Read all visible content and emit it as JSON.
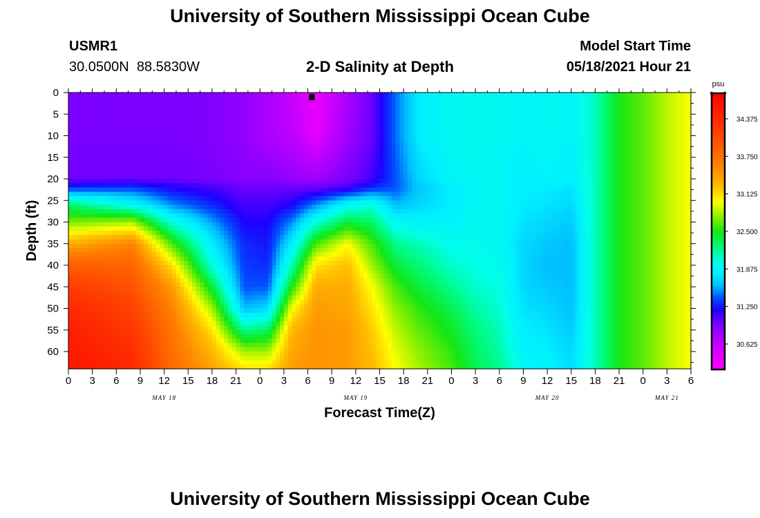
{
  "header": {
    "title": "University of Southern Mississippi Ocean Cube",
    "station_id": "USMR1",
    "coords": "30.0500N  88.5830W",
    "plot_title": "2-D Salinity at Depth",
    "model_start_label": "Model Start Time",
    "model_start_value": "05/18/2021 Hour 21"
  },
  "footer": {
    "title": "University of Southern Mississippi Ocean Cube"
  },
  "chart_data": {
    "type": "heatmap",
    "title": "2-D Salinity at Depth",
    "xlabel": "Forecast Time(Z)",
    "ylabel": "Depth (ft)",
    "x_unit": "hours since 2021-05-18 00Z",
    "xlim": [
      0,
      78
    ],
    "ylim": [
      0,
      64
    ],
    "y_inverted": true,
    "x_ticks": [
      0,
      3,
      6,
      9,
      12,
      15,
      18,
      21,
      24,
      27,
      30,
      33,
      36,
      39,
      42,
      45,
      48,
      51,
      54,
      57,
      60,
      63,
      66,
      69,
      72,
      75,
      78
    ],
    "x_tick_labels": [
      "0",
      "3",
      "6",
      "9",
      "12",
      "15",
      "18",
      "21",
      "0",
      "3",
      "6",
      "9",
      "12",
      "15",
      "18",
      "21",
      "0",
      "3",
      "6",
      "9",
      "12",
      "15",
      "18",
      "21",
      "0",
      "3",
      "6"
    ],
    "y_ticks": [
      0,
      5,
      10,
      15,
      20,
      25,
      30,
      35,
      40,
      45,
      50,
      55,
      60
    ],
    "y_tick_labels": [
      "0",
      "5",
      "10",
      "15",
      "20",
      "25",
      "30",
      "35",
      "40",
      "45",
      "50",
      "55",
      "60"
    ],
    "date_labels": [
      {
        "x": 12,
        "label": "MAY 18"
      },
      {
        "x": 36,
        "label": "MAY 19"
      },
      {
        "x": 60,
        "label": "MAY 20"
      },
      {
        "x": 75,
        "label": "MAY 21"
      }
    ],
    "marker": {
      "x": 30.5,
      "depth": 0.5
    },
    "colorbar": {
      "unit": "psu",
      "min": 30.2,
      "max": 34.8,
      "tick_values": [
        34.375,
        33.75,
        33.125,
        32.5,
        31.875,
        31.25,
        30.625
      ],
      "tick_labels": [
        "34.375",
        "33.750",
        "33.125",
        "32.500",
        "31.875",
        "31.250",
        "30.625"
      ]
    },
    "salinity_profiles": {
      "depths": [
        0,
        10,
        20,
        22,
        26,
        30,
        35,
        40,
        45,
        50,
        55,
        60,
        64
      ],
      "columns": [
        {
          "t": 0,
          "values": [
            30.95,
            30.95,
            31.0,
            31.3,
            32.3,
            32.7,
            33.35,
            33.9,
            34.2,
            34.4,
            34.5,
            34.55,
            34.6
          ]
        },
        {
          "t": 8,
          "values": [
            30.95,
            30.95,
            31.0,
            31.35,
            31.9,
            32.8,
            33.6,
            33.85,
            34.0,
            34.15,
            34.25,
            34.35,
            34.4
          ]
        },
        {
          "t": 13,
          "values": [
            30.95,
            30.95,
            31.0,
            31.2,
            31.5,
            32.0,
            32.6,
            33.1,
            33.45,
            33.6,
            33.7,
            33.75,
            33.8
          ]
        },
        {
          "t": 18,
          "values": [
            30.92,
            30.92,
            30.95,
            31.1,
            31.3,
            31.55,
            31.8,
            32.0,
            32.4,
            32.8,
            33.1,
            33.3,
            33.4
          ]
        },
        {
          "t": 22,
          "values": [
            30.85,
            30.85,
            30.9,
            31.0,
            31.1,
            31.2,
            31.3,
            31.35,
            31.4,
            31.6,
            32.2,
            32.8,
            33.1
          ]
        },
        {
          "t": 25,
          "values": [
            30.75,
            30.75,
            30.9,
            31.0,
            31.1,
            31.2,
            31.25,
            31.3,
            31.4,
            31.7,
            32.3,
            32.8,
            33.1
          ]
        },
        {
          "t": 28,
          "values": [
            30.6,
            30.65,
            30.85,
            31.0,
            31.2,
            31.5,
            31.8,
            32.1,
            32.5,
            33.0,
            33.3,
            33.4,
            33.45
          ]
        },
        {
          "t": 31,
          "values": [
            30.4,
            30.45,
            30.8,
            31.0,
            31.5,
            32.0,
            32.6,
            33.1,
            33.35,
            33.45,
            33.5,
            33.5,
            33.5
          ]
        },
        {
          "t": 35,
          "values": [
            30.75,
            30.8,
            30.95,
            31.1,
            31.9,
            32.4,
            33.0,
            33.25,
            33.35,
            33.4,
            33.45,
            33.45,
            33.45
          ]
        },
        {
          "t": 38,
          "values": [
            31.0,
            31.0,
            31.1,
            31.3,
            32.0,
            32.3,
            32.6,
            32.8,
            33.0,
            33.1,
            33.2,
            33.25,
            33.3
          ]
        },
        {
          "t": 41,
          "values": [
            31.45,
            31.45,
            31.4,
            31.4,
            31.6,
            31.9,
            32.2,
            32.4,
            32.6,
            32.75,
            32.85,
            32.95,
            33.0
          ]
        },
        {
          "t": 44,
          "values": [
            31.8,
            31.8,
            31.7,
            31.65,
            31.7,
            31.85,
            32.1,
            32.25,
            32.4,
            32.55,
            32.65,
            32.75,
            32.8
          ]
        },
        {
          "t": 48,
          "values": [
            31.9,
            31.9,
            31.85,
            31.8,
            31.8,
            31.85,
            31.95,
            32.05,
            32.2,
            32.35,
            32.45,
            32.55,
            32.6
          ]
        },
        {
          "t": 51,
          "values": [
            31.95,
            31.95,
            31.9,
            31.9,
            31.9,
            31.9,
            31.95,
            32.0,
            32.05,
            32.15,
            32.25,
            32.3,
            32.35
          ]
        },
        {
          "t": 54,
          "values": [
            31.9,
            31.9,
            31.9,
            31.9,
            31.9,
            31.9,
            31.9,
            31.95,
            32.0,
            32.05,
            32.1,
            32.15,
            32.2
          ]
        },
        {
          "t": 57,
          "values": [
            31.85,
            31.85,
            31.8,
            31.8,
            31.8,
            31.75,
            31.7,
            31.7,
            31.7,
            31.75,
            31.8,
            31.85,
            31.9
          ]
        },
        {
          "t": 60,
          "values": [
            31.9,
            31.9,
            31.85,
            31.8,
            31.75,
            31.7,
            31.65,
            31.6,
            31.65,
            31.7,
            31.75,
            31.8,
            31.85
          ]
        },
        {
          "t": 63,
          "values": [
            31.85,
            31.85,
            31.8,
            31.75,
            31.7,
            31.65,
            31.6,
            31.6,
            31.6,
            31.62,
            31.65,
            31.7,
            31.72
          ]
        },
        {
          "t": 66,
          "values": [
            32.1,
            32.1,
            32.1,
            32.1,
            32.1,
            32.1,
            32.1,
            32.1,
            32.1,
            32.1,
            32.1,
            32.1,
            32.1
          ]
        },
        {
          "t": 69,
          "values": [
            32.5,
            32.5,
            32.5,
            32.5,
            32.5,
            32.5,
            32.5,
            32.5,
            32.5,
            32.5,
            32.5,
            32.5,
            32.5
          ]
        },
        {
          "t": 72,
          "values": [
            32.65,
            32.65,
            32.65,
            32.65,
            32.65,
            32.65,
            32.65,
            32.65,
            32.65,
            32.65,
            32.65,
            32.65,
            32.65
          ]
        },
        {
          "t": 75,
          "values": [
            32.85,
            32.85,
            32.85,
            32.85,
            32.85,
            32.85,
            32.85,
            32.85,
            32.85,
            32.85,
            32.85,
            32.85,
            32.85
          ]
        },
        {
          "t": 78,
          "values": [
            33.0,
            33.0,
            33.0,
            33.0,
            33.0,
            33.0,
            33.0,
            33.0,
            33.0,
            33.0,
            33.0,
            33.0,
            33.0
          ]
        }
      ]
    }
  }
}
